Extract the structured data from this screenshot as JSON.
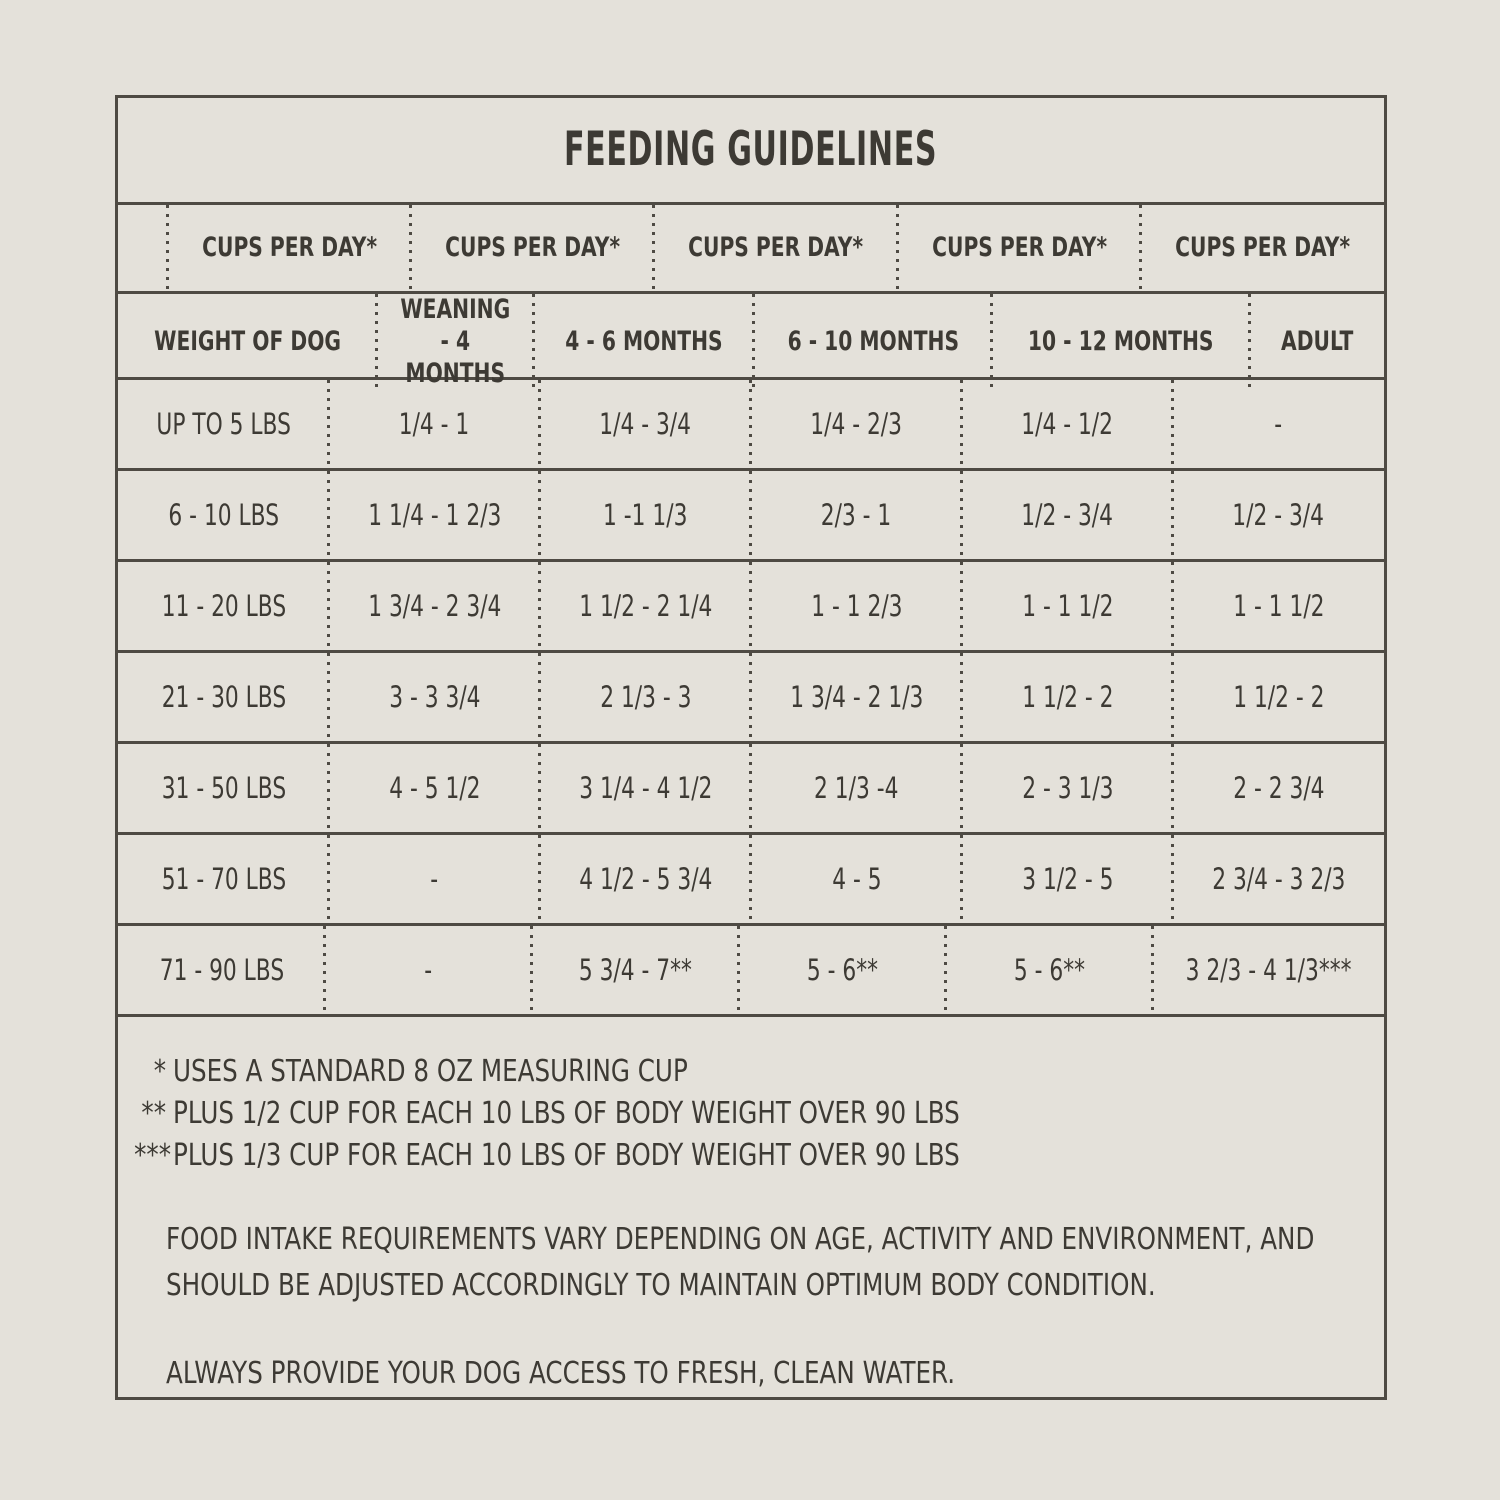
{
  "title": "FEEDING GUIDELINES",
  "table": {
    "cups_headers": [
      "CUPS PER DAY*",
      "CUPS PER DAY*",
      "CUPS PER DAY*",
      "CUPS PER DAY*",
      "CUPS PER DAY*"
    ],
    "age_headers": [
      "WEIGHT OF DOG",
      "WEANING - 4 MONTHS",
      "4 - 6 MONTHS",
      "6 - 10 MONTHS",
      "10 - 12 MONTHS",
      "ADULT"
    ],
    "rows": [
      {
        "weight": "UP TO 5 LBS",
        "values": [
          "1/4 - 1",
          "1/4 - 3/4",
          "1/4 - 2/3",
          "1/4 - 1/2",
          "-"
        ]
      },
      {
        "weight": "6 - 10 LBS",
        "values": [
          "1 1/4 - 1 2/3",
          "1 -1 1/3",
          "2/3 - 1",
          "1/2 - 3/4",
          "1/2 - 3/4"
        ]
      },
      {
        "weight": "11 - 20 LBS",
        "values": [
          "1 3/4 - 2 3/4",
          "1 1/2 - 2 1/4",
          "1 - 1 2/3",
          "1 - 1 1/2",
          "1 - 1 1/2"
        ]
      },
      {
        "weight": "21 - 30 LBS",
        "values": [
          "3 - 3 3/4",
          "2 1/3 - 3",
          "1 3/4 - 2 1/3",
          "1 1/2 - 2",
          "1 1/2 - 2"
        ]
      },
      {
        "weight": "31 - 50 LBS",
        "values": [
          "4 - 5 1/2",
          "3 1/4 - 4 1/2",
          "2 1/3 -4",
          "2 - 3 1/3",
          "2 - 2 3/4"
        ]
      },
      {
        "weight": "51 - 70 LBS",
        "values": [
          "-",
          "4 1/2 - 5 3/4",
          "4 - 5",
          "3 1/2 - 5",
          "2 3/4 - 3 2/3"
        ]
      },
      {
        "weight": "71 - 90 LBS",
        "values": [
          "-",
          "5 3/4 - 7**",
          "5 - 6**",
          "5 - 6**",
          "3 2/3 - 4 1/3***"
        ]
      }
    ]
  },
  "footnotes": [
    {
      "marker": "*",
      "text": "USES A STANDARD 8 OZ MEASURING CUP"
    },
    {
      "marker": "**",
      "text": "PLUS 1/2 CUP FOR EACH 10 LBS OF BODY WEIGHT OVER 90 LBS"
    },
    {
      "marker": "***",
      "text": "PLUS 1/3 CUP FOR EACH 10 LBS OF BODY WEIGHT OVER 90 LBS"
    }
  ],
  "notes": {
    "intake_line1": "FOOD INTAKE REQUIREMENTS VARY DEPENDING ON AGE, ACTIVITY AND ENVIRONMENT, AND",
    "intake_line2": "SHOULD BE ADJUSTED ACCORDINGLY TO MAINTAIN OPTIMUM BODY CONDITION.",
    "water": "ALWAYS PROVIDE YOUR DOG ACCESS TO FRESH, CLEAN WATER."
  },
  "colors": {
    "background": "#e4e1da",
    "border": "#4e4a43",
    "text": "#3d3a34"
  }
}
